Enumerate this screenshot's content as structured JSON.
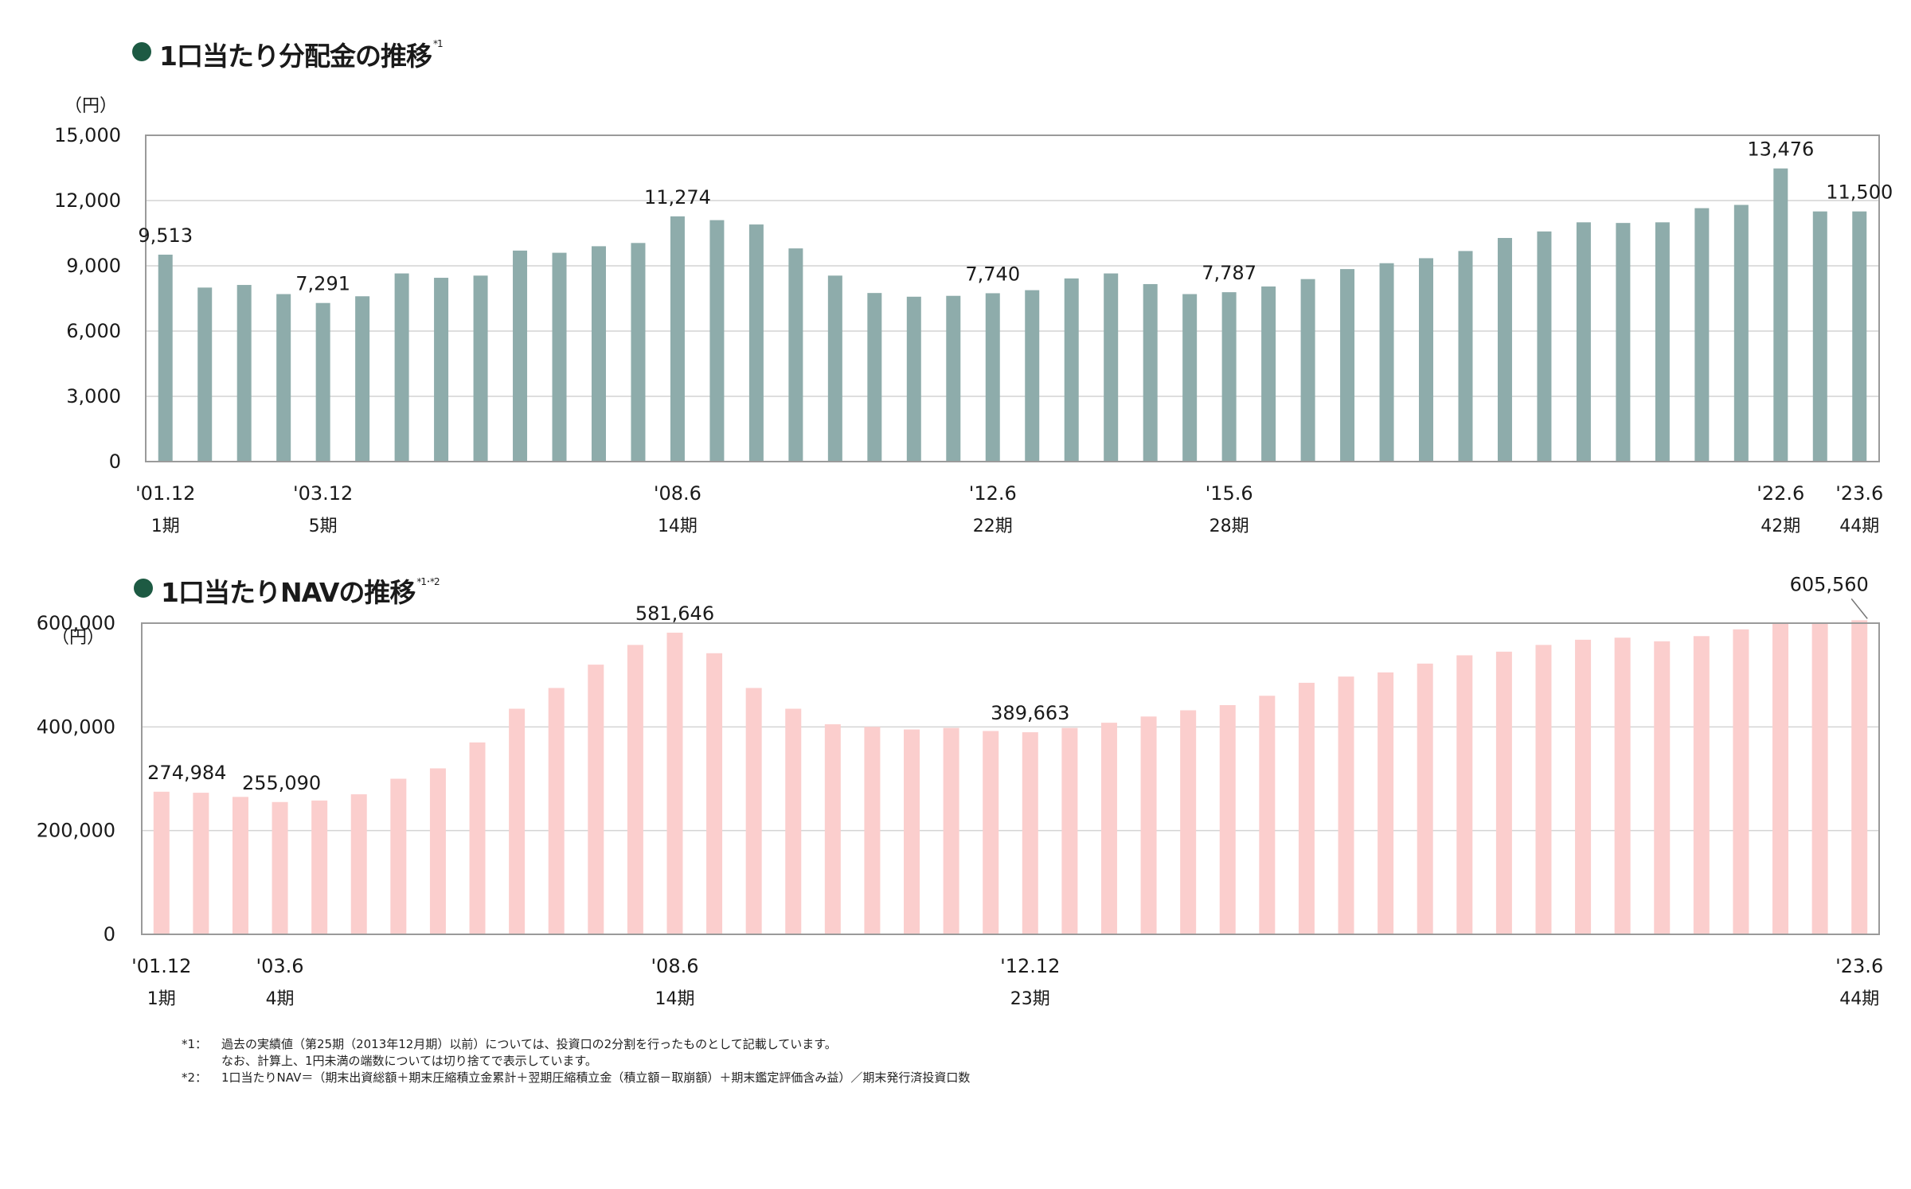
{
  "sections": [
    {
      "title": "1口当たり分配金の推移",
      "note": "*1"
    },
    {
      "title": "1口当たりNAVの推移",
      "note": "*1･*2"
    }
  ],
  "chart_data": [
    {
      "type": "bar",
      "unit": "（円）",
      "ylim": [
        0,
        15000
      ],
      "yticks": [
        "15,000",
        "12,000",
        "9,000",
        "6,000",
        "3,000",
        "0"
      ],
      "ytick_values": [
        15000,
        12000,
        9000,
        6000,
        3000,
        0
      ],
      "grid": true,
      "bar_color": "#8eacab",
      "periods": [
        1,
        2,
        3,
        4,
        5,
        6,
        7,
        8,
        9,
        10,
        11,
        12,
        13,
        14,
        15,
        16,
        17,
        18,
        19,
        20,
        21,
        22,
        23,
        24,
        25,
        26,
        27,
        28,
        29,
        30,
        31,
        32,
        33,
        34,
        35,
        36,
        37,
        38,
        39,
        40,
        41,
        42,
        43,
        44
      ],
      "values": [
        9513,
        8000,
        8120,
        7700,
        7291,
        7600,
        8650,
        8450,
        8550,
        9700,
        9600,
        9900,
        10050,
        11274,
        11100,
        10900,
        9800,
        8550,
        7750,
        7580,
        7620,
        7740,
        7880,
        8420,
        8650,
        8160,
        7700,
        7787,
        8050,
        8390,
        8850,
        9120,
        9350,
        9680,
        10280,
        10580,
        11000,
        10970,
        11000,
        11650,
        11800,
        13476,
        11500,
        11500
      ],
      "data_labels": [
        {
          "index": 0,
          "text": "9,513"
        },
        {
          "index": 4,
          "text": "7,291"
        },
        {
          "index": 13,
          "text": "11,274"
        },
        {
          "index": 21,
          "text": "7,740"
        },
        {
          "index": 27,
          "text": "7,787"
        },
        {
          "index": 41,
          "text": "13,476"
        },
        {
          "index": 43,
          "text": "11,500"
        }
      ],
      "x_labels": [
        {
          "index": 0,
          "date": "'01.12",
          "period": "1期"
        },
        {
          "index": 4,
          "date": "'03.12",
          "period": "5期"
        },
        {
          "index": 13,
          "date": "'08.6",
          "period": "14期"
        },
        {
          "index": 21,
          "date": "'12.6",
          "period": "22期"
        },
        {
          "index": 27,
          "date": "'15.6",
          "period": "28期"
        },
        {
          "index": 41,
          "date": "'22.6",
          "period": "42期"
        },
        {
          "index": 43,
          "date": "'23.6",
          "period": "44期"
        }
      ]
    },
    {
      "type": "bar",
      "unit": "（円）",
      "ylim": [
        0,
        600000
      ],
      "yticks": [
        "600,000",
        "400,000",
        "200,000",
        "0"
      ],
      "ytick_values": [
        600000,
        400000,
        200000,
        0
      ],
      "grid": true,
      "bar_color": "#fbcecd",
      "periods": [
        1,
        2,
        3,
        4,
        5,
        6,
        7,
        8,
        9,
        10,
        11,
        12,
        13,
        14,
        15,
        16,
        17,
        18,
        19,
        20,
        21,
        22,
        23,
        24,
        25,
        26,
        27,
        28,
        29,
        30,
        31,
        32,
        33,
        34,
        35,
        36,
        37,
        38,
        39,
        40,
        41,
        42,
        43,
        44
      ],
      "values": [
        274984,
        273000,
        265000,
        255090,
        258000,
        270000,
        300000,
        320000,
        370000,
        435000,
        475000,
        520000,
        558000,
        581646,
        542000,
        475000,
        435000,
        405000,
        400000,
        395000,
        398000,
        392000,
        389663,
        398000,
        408000,
        420000,
        432000,
        442000,
        460000,
        485000,
        497000,
        505000,
        522000,
        538000,
        545000,
        558000,
        568000,
        572000,
        565000,
        575000,
        588000,
        600000,
        601000,
        605560
      ],
      "data_labels": [
        {
          "index": 0,
          "text": "274,984"
        },
        {
          "index": 3,
          "text": "255,090"
        },
        {
          "index": 13,
          "text": "581,646"
        },
        {
          "index": 22,
          "text": "389,663"
        },
        {
          "index": 43,
          "text": "605,560"
        }
      ],
      "x_labels": [
        {
          "index": 0,
          "date": "'01.12",
          "period": "1期"
        },
        {
          "index": 3,
          "date": "'03.6",
          "period": "4期"
        },
        {
          "index": 13,
          "date": "'08.6",
          "period": "14期"
        },
        {
          "index": 22,
          "date": "'12.12",
          "period": "23期"
        },
        {
          "index": 43,
          "date": "'23.6",
          "period": "44期"
        }
      ]
    }
  ],
  "footnotes": {
    "n1_label": "*1：",
    "n1_line1": "過去の実績値（第25期（2013年12月期）以前）については、投資口の2分割を行ったものとして記載しています。",
    "n1_line2": "なお、計算上、1円未満の端数については切り捨てで表示しています。",
    "n2_label": "*2：",
    "n2_line1": "1口当たりNAV＝（期末出資総額＋期末圧縮積立金累計＋翌期圧縮積立金（積立額－取崩額）＋期末鑑定評価含み益）／期末発行済投資口数"
  }
}
